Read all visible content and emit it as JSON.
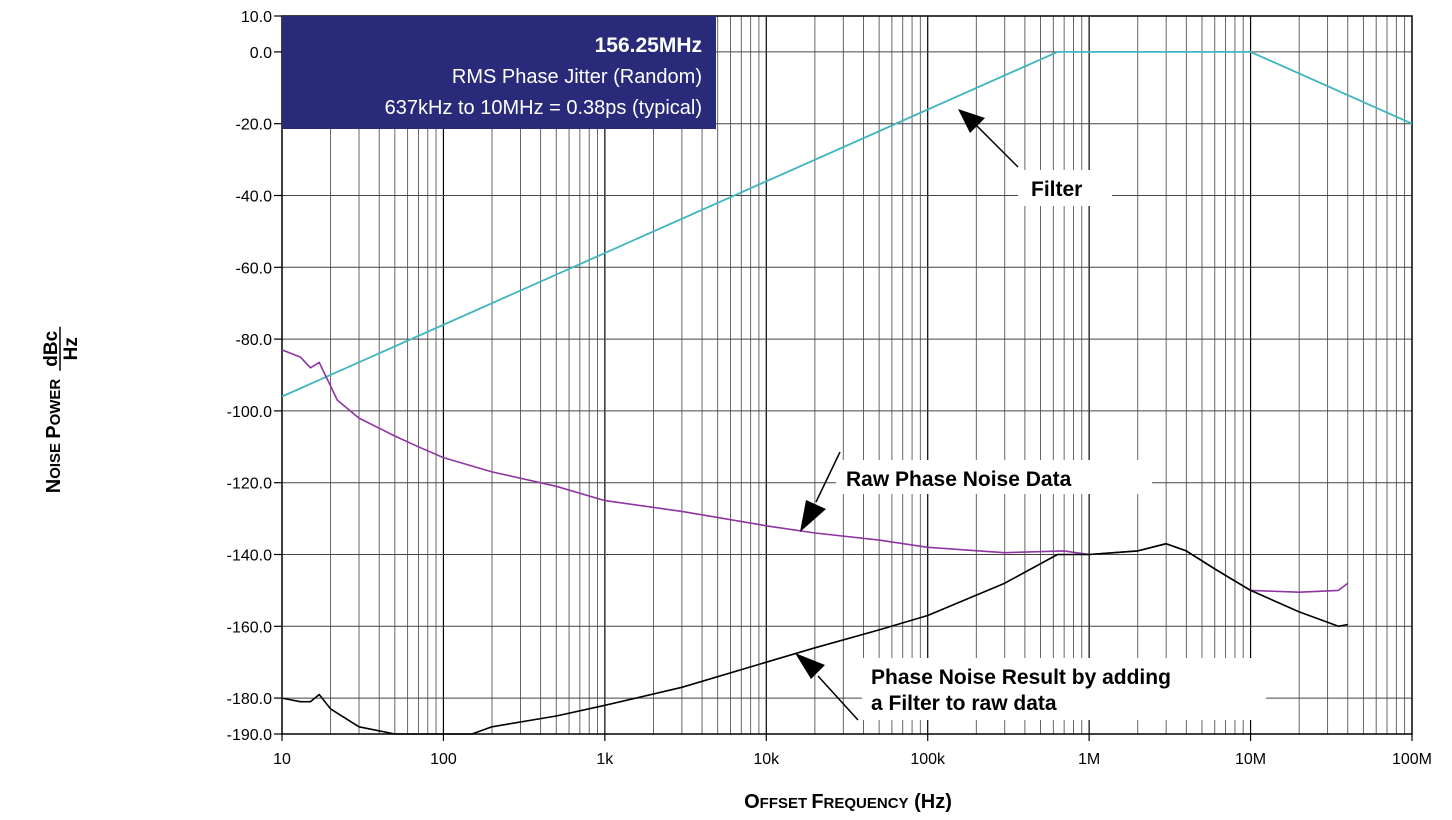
{
  "chart_data": {
    "type": "line",
    "x_scale": "log",
    "xlim": [
      10,
      100000000
    ],
    "ylim": [
      -190,
      10
    ],
    "grid": true,
    "xlabel": "Offset Frequency (Hz)",
    "ylabel_prefix": "Noise Power",
    "ylabel_num": "dBc",
    "ylabel_den": "Hz",
    "x_ticks": [
      {
        "value": 10,
        "label": "10"
      },
      {
        "value": 100,
        "label": "100"
      },
      {
        "value": 1000,
        "label": "1k"
      },
      {
        "value": 10000,
        "label": "10k"
      },
      {
        "value": 100000,
        "label": "100k"
      },
      {
        "value": 1000000,
        "label": "1M"
      },
      {
        "value": 10000000,
        "label": "10M"
      },
      {
        "value": 100000000,
        "label": "100M"
      }
    ],
    "y_ticks": [
      {
        "value": 10,
        "label": "10.0"
      },
      {
        "value": 0,
        "label": "0.0"
      },
      {
        "value": -20,
        "label": "-20.0"
      },
      {
        "value": -40,
        "label": "-40.0"
      },
      {
        "value": -60,
        "label": "-60.0"
      },
      {
        "value": -80,
        "label": "-80.0"
      },
      {
        "value": -100,
        "label": "-100.0"
      },
      {
        "value": -120,
        "label": "-120.0"
      },
      {
        "value": -140,
        "label": "-140.0"
      },
      {
        "value": -160,
        "label": "-160.0"
      },
      {
        "value": -180,
        "label": "-180.0"
      },
      {
        "value": -190,
        "label": "-190.0"
      }
    ],
    "info_box": {
      "line1": "156.25MHz",
      "line2": "RMS Phase Jitter (Random)",
      "line3": "637kHz  to 10MHz = 0.38ps (typical)"
    },
    "series": [
      {
        "key": "filter",
        "color": "#3fb6bf",
        "points": [
          [
            10,
            -96
          ],
          [
            637000,
            0
          ],
          [
            10000000,
            0
          ],
          [
            100000000,
            -20
          ]
        ]
      },
      {
        "key": "raw",
        "color": "#8e35a3",
        "points": [
          [
            10,
            -83
          ],
          [
            13,
            -85
          ],
          [
            15,
            -88
          ],
          [
            17,
            -86.5
          ],
          [
            19,
            -91
          ],
          [
            22,
            -97
          ],
          [
            30,
            -102
          ],
          [
            50,
            -107
          ],
          [
            70,
            -110
          ],
          [
            100,
            -113
          ],
          [
            200,
            -117
          ],
          [
            500,
            -121
          ],
          [
            1000,
            -125
          ],
          [
            3000,
            -128
          ],
          [
            10000,
            -132
          ],
          [
            20000,
            -134
          ],
          [
            50000,
            -136
          ],
          [
            100000,
            -138
          ],
          [
            300000,
            -139.5
          ],
          [
            700000,
            -139
          ],
          [
            1000000,
            -140
          ],
          [
            2000000,
            -139
          ],
          [
            3000000,
            -137
          ],
          [
            4000000,
            -139
          ],
          [
            6000000,
            -144
          ],
          [
            10000000,
            -150
          ],
          [
            20000000,
            -150.5
          ],
          [
            35000000,
            -150
          ],
          [
            40000000,
            -148
          ]
        ]
      },
      {
        "key": "result",
        "color": "#000000",
        "points": [
          [
            10,
            -180
          ],
          [
            13,
            -181
          ],
          [
            15,
            -181
          ],
          [
            17,
            -179
          ],
          [
            20,
            -183
          ],
          [
            30,
            -188
          ],
          [
            50,
            -190
          ],
          [
            100,
            -190
          ],
          [
            150,
            -190
          ],
          [
            200,
            -188
          ],
          [
            500,
            -185
          ],
          [
            1000,
            -182
          ],
          [
            3000,
            -177
          ],
          [
            10000,
            -170
          ],
          [
            20000,
            -166
          ],
          [
            50000,
            -161
          ],
          [
            100000,
            -157
          ],
          [
            300000,
            -148
          ],
          [
            637000,
            -140
          ],
          [
            1000000,
            -140
          ],
          [
            2000000,
            -139
          ],
          [
            3000000,
            -137
          ],
          [
            4000000,
            -139
          ],
          [
            6000000,
            -144
          ],
          [
            10000000,
            -150
          ],
          [
            20000000,
            -156
          ],
          [
            35000000,
            -160
          ],
          [
            40000000,
            -159.5
          ]
        ]
      }
    ],
    "annotations": [
      {
        "key": "filter",
        "text": "Filter"
      },
      {
        "key": "raw",
        "text": "Raw Phase Noise Data"
      },
      {
        "key": "result",
        "line1": "Phase Noise Result by adding",
        "line2": "a Filter to raw data"
      }
    ]
  }
}
